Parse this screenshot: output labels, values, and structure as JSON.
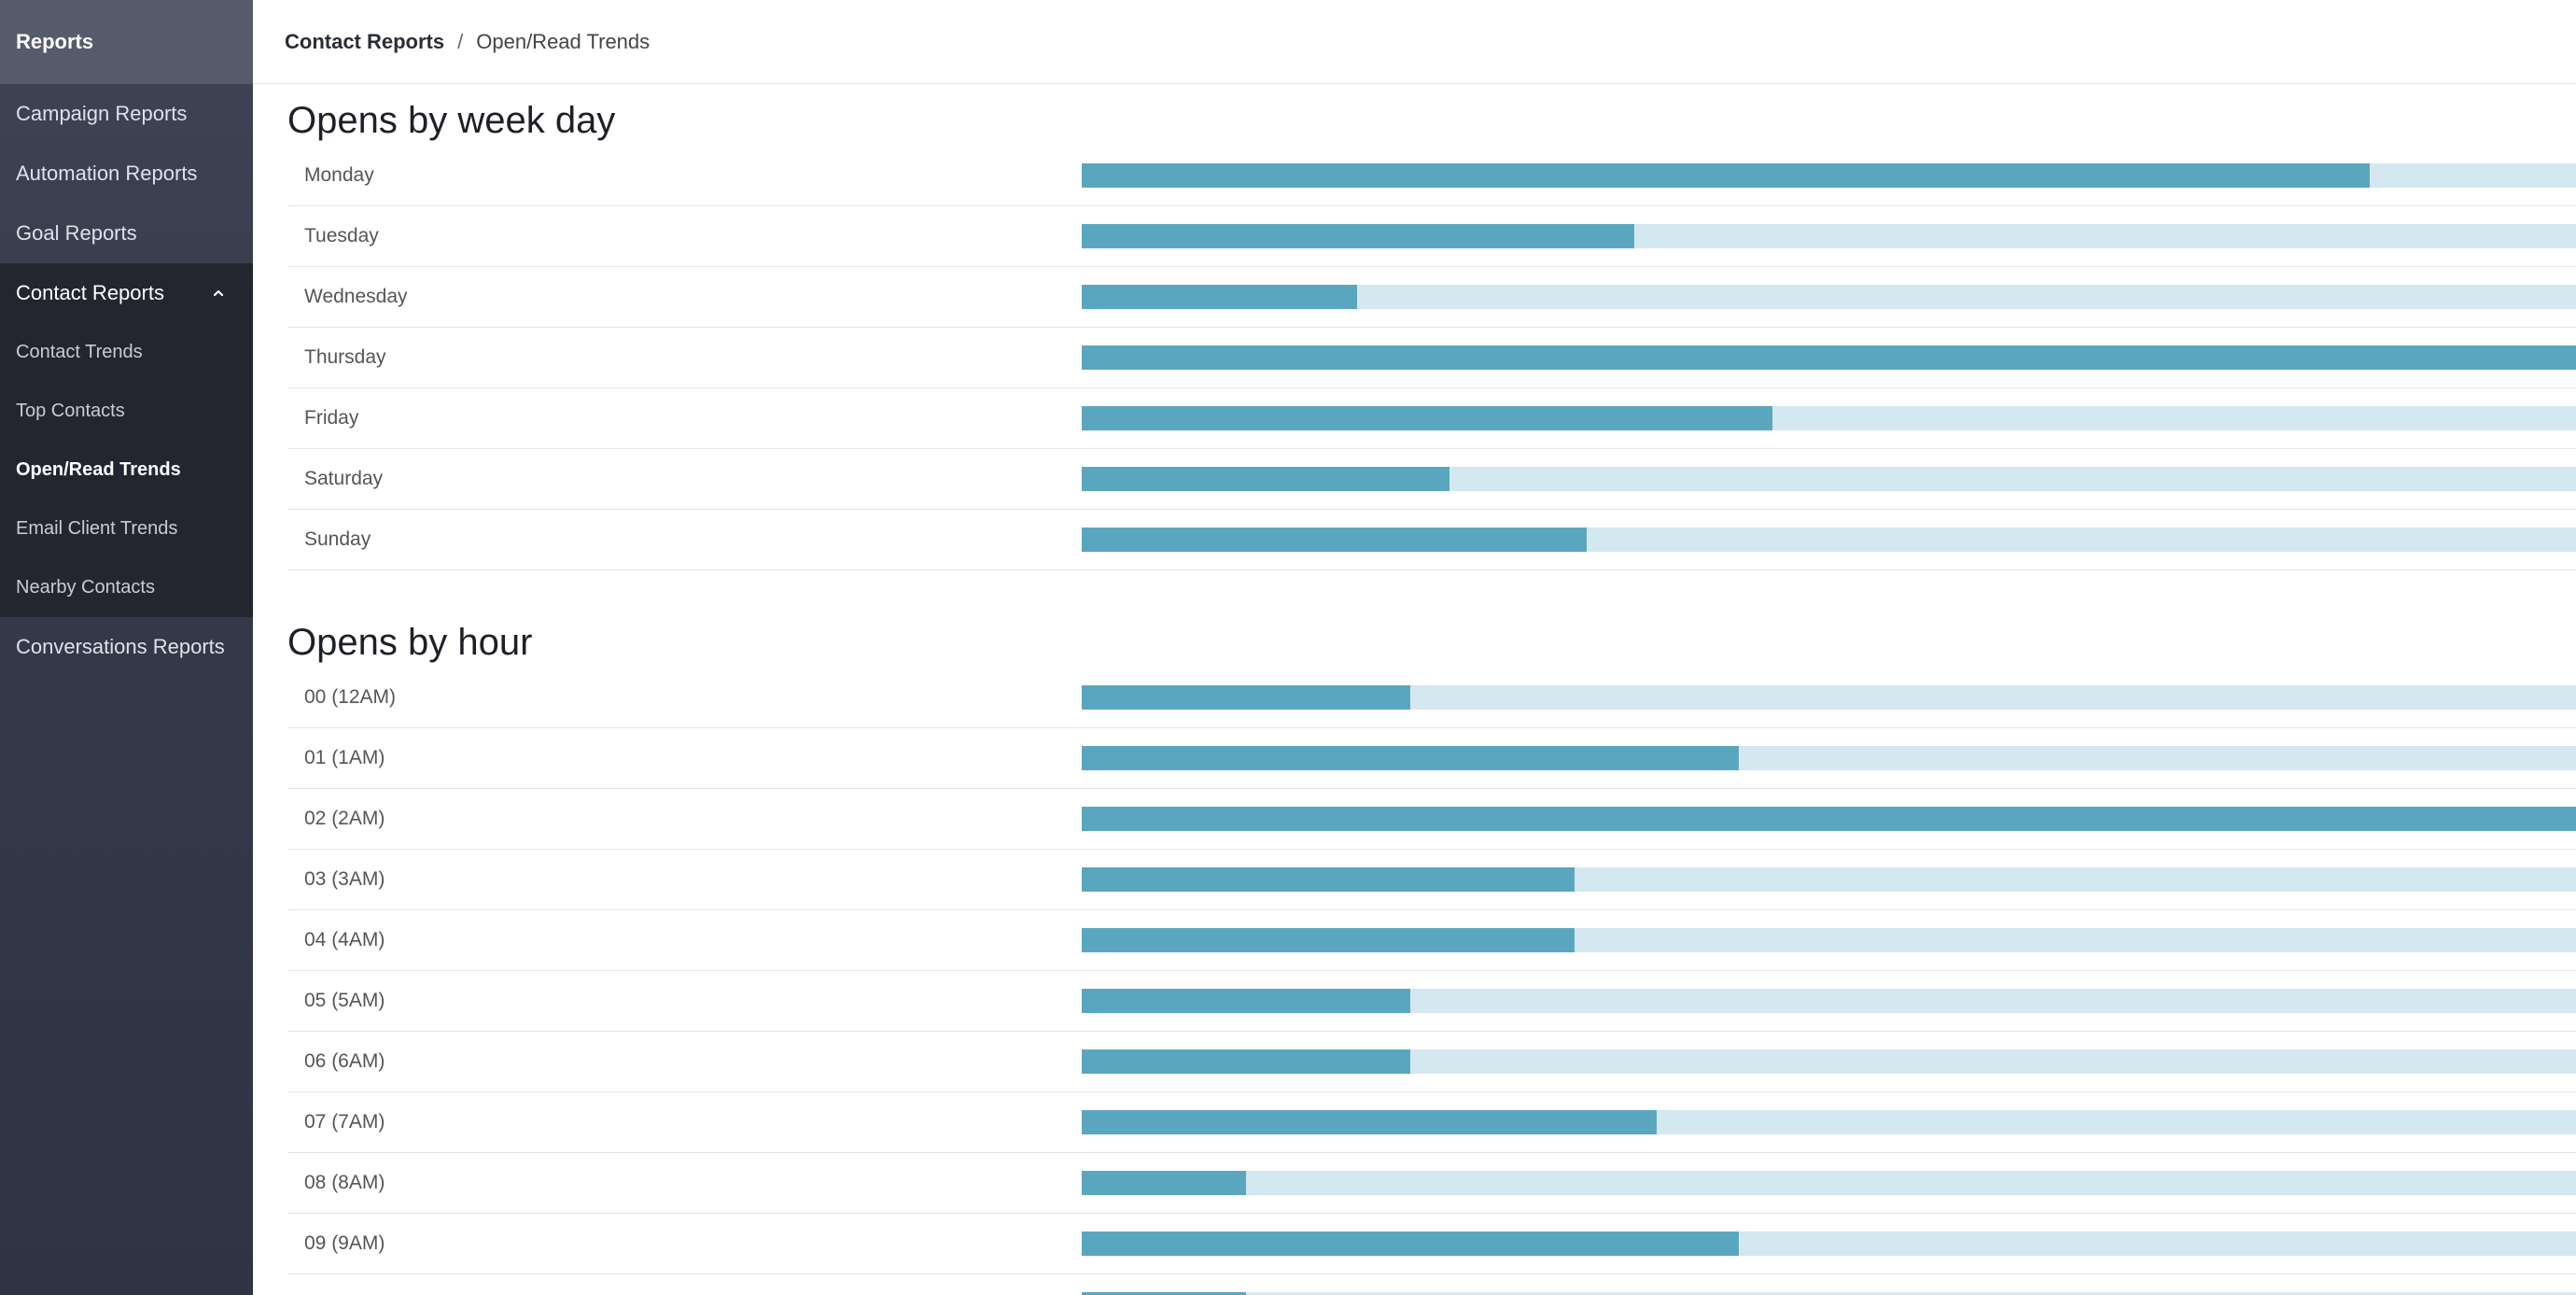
{
  "sidebar": {
    "title": "Reports",
    "items_top": [
      {
        "label": "Campaign Reports"
      },
      {
        "label": "Automation Reports"
      },
      {
        "label": "Goal Reports"
      }
    ],
    "group": {
      "label": "Contact Reports",
      "icon": "chevron-up-icon",
      "children": [
        {
          "label": "Contact Trends",
          "active": false
        },
        {
          "label": "Top Contacts",
          "active": false
        },
        {
          "label": "Open/Read Trends",
          "active": true
        },
        {
          "label": "Email Client Trends",
          "active": false
        },
        {
          "label": "Nearby Contacts",
          "active": false
        }
      ]
    },
    "items_bottom": [
      {
        "label": "Conversations Reports"
      }
    ]
  },
  "breadcrumb": {
    "parent": "Contact Reports",
    "separator": "/",
    "current": "Open/Read Trends"
  },
  "colors": {
    "bar_fill": "#5ba6bf",
    "bar_track": "#d4e8f0"
  },
  "weekday": {
    "title": "Opens by week day",
    "rows": [
      {
        "label": "Monday",
        "fraction": 0.862
      },
      {
        "label": "Tuesday",
        "fraction": 0.37
      },
      {
        "label": "Wednesday",
        "fraction": 0.184
      },
      {
        "label": "Thursday",
        "fraction": 1.0
      },
      {
        "label": "Friday",
        "fraction": 0.462
      },
      {
        "label": "Saturday",
        "fraction": 0.246
      },
      {
        "label": "Sunday",
        "fraction": 0.338
      }
    ]
  },
  "hourly": {
    "title": "Opens by hour",
    "rows": [
      {
        "label": "00 (12AM)",
        "fraction": 0.22
      },
      {
        "label": "01 (1AM)",
        "fraction": 0.44
      },
      {
        "label": "02 (2AM)",
        "fraction": 1.0
      },
      {
        "label": "03 (3AM)",
        "fraction": 0.33
      },
      {
        "label": "04 (4AM)",
        "fraction": 0.33
      },
      {
        "label": "05 (5AM)",
        "fraction": 0.22
      },
      {
        "label": "06 (6AM)",
        "fraction": 0.22
      },
      {
        "label": "07 (7AM)",
        "fraction": 0.385
      },
      {
        "label": "08 (8AM)",
        "fraction": 0.11
      },
      {
        "label": "09 (9AM)",
        "fraction": 0.44
      },
      {
        "label": "",
        "fraction": 0.11
      }
    ]
  }
}
